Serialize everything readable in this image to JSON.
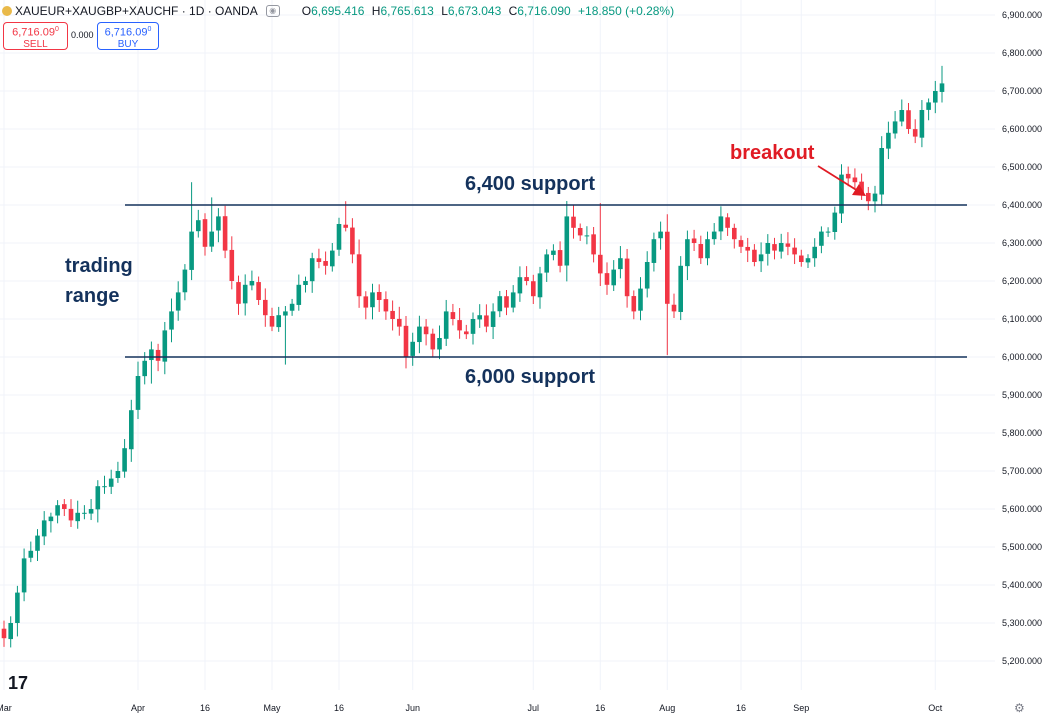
{
  "header": {
    "symbol": "XAUEUR+XAUGBP+XAUCHF · 1D · OANDA",
    "ohlc": [
      {
        "k": "O",
        "v": "6,695.416"
      },
      {
        "k": "H",
        "v": "6,765.613"
      },
      {
        "k": "L",
        "v": "6,673.043"
      },
      {
        "k": "C",
        "v": "6,716.090"
      },
      {
        "k": "",
        "v": "+18.850 (+0.28%)"
      }
    ]
  },
  "trade": {
    "sell_price": "6,716.09",
    "sell_sup": "0",
    "sell_label": "SELL",
    "spread": "0.000",
    "buy_price": "6,716.09",
    "buy_sup": "0",
    "buy_label": "BUY"
  },
  "annotations": {
    "upper": "6,400 support",
    "lower": "6,000 support",
    "range": "trading range",
    "breakout": "breakout"
  },
  "colors": {
    "up": "#089981",
    "down": "#f23645",
    "line": "#14325c",
    "arrow": "#e01b24"
  },
  "chart_data": {
    "type": "candlestick",
    "ylim": [
      5150,
      6950
    ],
    "yticks": [
      "5,200.000",
      "5,300.000",
      "5,400.000",
      "5,500.000",
      "5,600.000",
      "5,700.000",
      "5,800.000",
      "5,900.000",
      "6,000.000",
      "6,100.000",
      "6,200.000",
      "6,300.000",
      "6,400.000",
      "6,500.000",
      "6,600.000",
      "6,700.000",
      "6,800.000",
      "6,900.000"
    ],
    "ytick_values": [
      5200,
      5300,
      5400,
      5500,
      5600,
      5700,
      5800,
      5900,
      6000,
      6100,
      6200,
      6300,
      6400,
      6500,
      6600,
      6700,
      6800,
      6900
    ],
    "xticks": [
      {
        "label": "Mar",
        "idx": 0
      },
      {
        "label": "Apr",
        "idx": 20
      },
      {
        "label": "16",
        "idx": 30
      },
      {
        "label": "May",
        "idx": 40
      },
      {
        "label": "16",
        "idx": 50
      },
      {
        "label": "Jun",
        "idx": 61
      },
      {
        "label": "Jul",
        "idx": 79
      },
      {
        "label": "16",
        "idx": 89
      },
      {
        "label": "Aug",
        "idx": 99
      },
      {
        "label": "16",
        "idx": 110
      },
      {
        "label": "Sep",
        "idx": 119
      },
      {
        "label": "Oct",
        "idx": 139
      }
    ],
    "horizontal_lines": [
      {
        "value": 6400,
        "label": "6,400 support",
        "start_idx": 18
      },
      {
        "value": 6000,
        "label": "6,000 support",
        "start_idx": 18
      }
    ],
    "closes": [
      5260,
      5300,
      5380,
      5470,
      5490,
      5530,
      5570,
      5580,
      5610,
      5600,
      5570,
      5590,
      5590,
      5600,
      5660,
      5660,
      5680,
      5700,
      5760,
      5860,
      5950,
      5990,
      6020,
      5990,
      6070,
      6120,
      6170,
      6230,
      6330,
      6360,
      6290,
      6330,
      6370,
      6280,
      6200,
      6140,
      6190,
      6200,
      6150,
      6110,
      6080,
      6110,
      6120,
      6140,
      6190,
      6200,
      6260,
      6250,
      6240,
      6280,
      6350,
      6340,
      6270,
      6160,
      6130,
      6170,
      6150,
      6120,
      6100,
      6080,
      6000,
      6040,
      6080,
      6060,
      6020,
      6050,
      6120,
      6100,
      6070,
      6060,
      6100,
      6110,
      6080,
      6120,
      6160,
      6130,
      6170,
      6210,
      6200,
      6160,
      6220,
      6270,
      6280,
      6240,
      6370,
      6340,
      6320,
      6320,
      6270,
      6220,
      6190,
      6230,
      6260,
      6160,
      6120,
      6180,
      6250,
      6310,
      6330,
      6140,
      6120,
      6240,
      6310,
      6300,
      6260,
      6310,
      6330,
      6370,
      6340,
      6310,
      6290,
      6280,
      6250,
      6270,
      6300,
      6280,
      6300,
      6290,
      6270,
      6250,
      6260,
      6290,
      6330,
      6330,
      6380,
      6480,
      6470,
      6460,
      6430,
      6410,
      6430,
      6550,
      6590,
      6620,
      6650,
      6600,
      6580,
      6650,
      6670,
      6700,
      6720
    ],
    "wick_extremes": [
      {
        "idx": 28,
        "high": 6460
      },
      {
        "idx": 31,
        "high": 6420
      },
      {
        "idx": 51,
        "high": 6410
      },
      {
        "idx": 60,
        "low": 5970
      },
      {
        "idx": 42,
        "low": 5980
      },
      {
        "idx": 99,
        "low": 6005
      },
      {
        "idx": 89,
        "high": 6405
      },
      {
        "idx": 22,
        "low": 5930
      },
      {
        "idx": 140,
        "high": 6766
      }
    ]
  }
}
